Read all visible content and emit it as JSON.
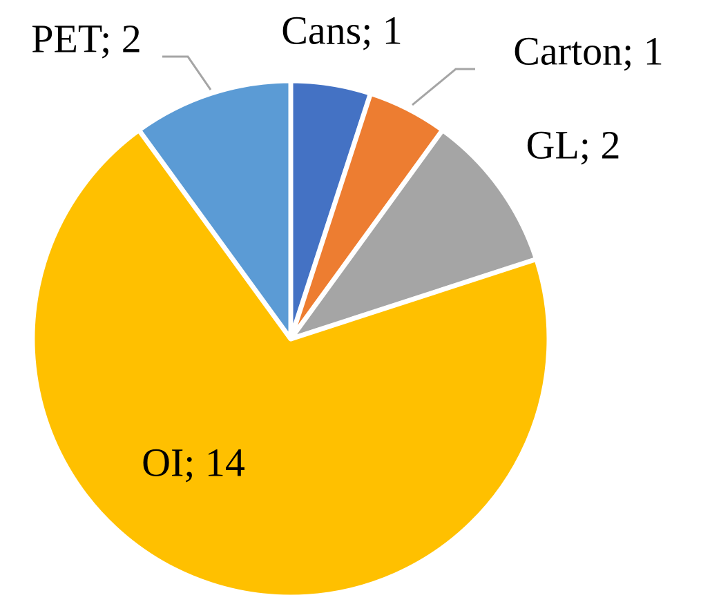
{
  "chart_data": {
    "type": "pie",
    "values": [
      1,
      1,
      2,
      14,
      2
    ],
    "value_labels": [
      "Cans; 1",
      "Carton; 1",
      "GL; 2",
      "OI; 14",
      "PET; 2"
    ],
    "colors": [
      "#4472c4",
      "#ed7d31",
      "#a5a5a5",
      "#ffc000",
      "#5b9bd5"
    ]
  }
}
